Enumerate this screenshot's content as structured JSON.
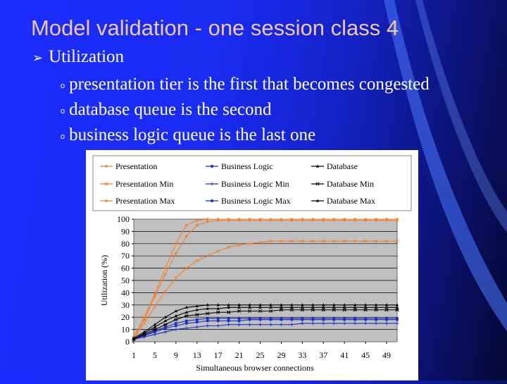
{
  "slide": {
    "title": "Model validation - one session class 4",
    "bullet": "Utilization",
    "subbullets": [
      "presentation tier is the first that becomes congested",
      "database queue is the second",
      "business logic queue is the last one"
    ]
  },
  "colors": {
    "presentation": "#f08030",
    "business": "#1a2ec8",
    "database": "#000000",
    "plot_bg": "#c0c0c0",
    "title": "#f0c9a0"
  },
  "chart_data": {
    "type": "line",
    "title": "",
    "xlabel": "Simultaneous browser connections",
    "ylabel": "Utilization (%)",
    "ylim": [
      0,
      100
    ],
    "xlim": [
      1,
      51
    ],
    "yticks": [
      "0",
      "10",
      "20",
      "30",
      "40",
      "50",
      "60",
      "70",
      "80",
      "90",
      "100"
    ],
    "xticks": [
      "1",
      "5",
      "9",
      "13",
      "17",
      "21",
      "25",
      "29",
      "33",
      "37",
      "41",
      "45",
      "49"
    ],
    "grid": true,
    "legend_position": "top",
    "x": [
      1,
      3,
      5,
      7,
      9,
      11,
      13,
      15,
      17,
      19,
      21,
      23,
      25,
      27,
      29,
      31,
      33,
      35,
      37,
      39,
      41,
      43,
      45,
      47,
      49,
      51
    ],
    "series": [
      {
        "name": "Presentation",
        "values": [
          3,
          18,
          37,
          55,
          72,
          86,
          95,
          98,
          99,
          99,
          99,
          99,
          99,
          99,
          99,
          99,
          99,
          99,
          99,
          99,
          99,
          99,
          99,
          99,
          99,
          99
        ]
      },
      {
        "name": "Presentation Min",
        "values": [
          3,
          15,
          29,
          41,
          52,
          60,
          66,
          70,
          74,
          77,
          79,
          80,
          81,
          82,
          82,
          82,
          82,
          82,
          82,
          82,
          82,
          82,
          82,
          82,
          82,
          82
        ]
      },
      {
        "name": "Presentation Max",
        "values": [
          4,
          20,
          39,
          60,
          80,
          95,
          99,
          100,
          100,
          100,
          100,
          100,
          100,
          100,
          100,
          100,
          100,
          100,
          100,
          100,
          100,
          100,
          100,
          100,
          100,
          100
        ]
      },
      {
        "name": "Business Logic",
        "values": [
          2,
          5,
          8,
          11,
          13,
          15,
          16,
          17,
          17,
          17,
          17,
          18,
          18,
          18,
          18,
          18,
          18,
          18,
          18,
          18,
          18,
          18,
          18,
          18,
          18,
          18
        ]
      },
      {
        "name": "Business Logic Min",
        "values": [
          2,
          4,
          6,
          8,
          10,
          11,
          12,
          13,
          13,
          14,
          14,
          14,
          14,
          14,
          14,
          14,
          15,
          15,
          15,
          15,
          15,
          15,
          15,
          15,
          15,
          15
        ]
      },
      {
        "name": "Business Logic Max",
        "values": [
          2,
          5,
          9,
          12,
          15,
          17,
          18,
          19,
          19,
          19,
          19,
          19,
          19,
          19,
          19,
          19,
          19,
          19,
          19,
          19,
          19,
          19,
          19,
          19,
          19,
          19
        ]
      },
      {
        "name": "Database",
        "values": [
          2,
          7,
          12,
          17,
          21,
          24,
          26,
          27,
          27,
          28,
          28,
          28,
          28,
          28,
          28,
          28,
          28,
          28,
          28,
          28,
          28,
          28,
          28,
          28,
          28,
          28
        ]
      },
      {
        "name": "Database Min",
        "values": [
          2,
          6,
          10,
          14,
          18,
          21,
          22,
          23,
          24,
          24,
          25,
          25,
          25,
          25,
          26,
          26,
          26,
          26,
          26,
          26,
          26,
          26,
          26,
          26,
          26,
          26
        ]
      },
      {
        "name": "Database Max",
        "values": [
          3,
          8,
          14,
          20,
          25,
          28,
          29,
          30,
          30,
          30,
          30,
          30,
          30,
          30,
          30,
          30,
          30,
          30,
          30,
          30,
          30,
          30,
          30,
          30,
          30,
          30
        ]
      }
    ]
  }
}
